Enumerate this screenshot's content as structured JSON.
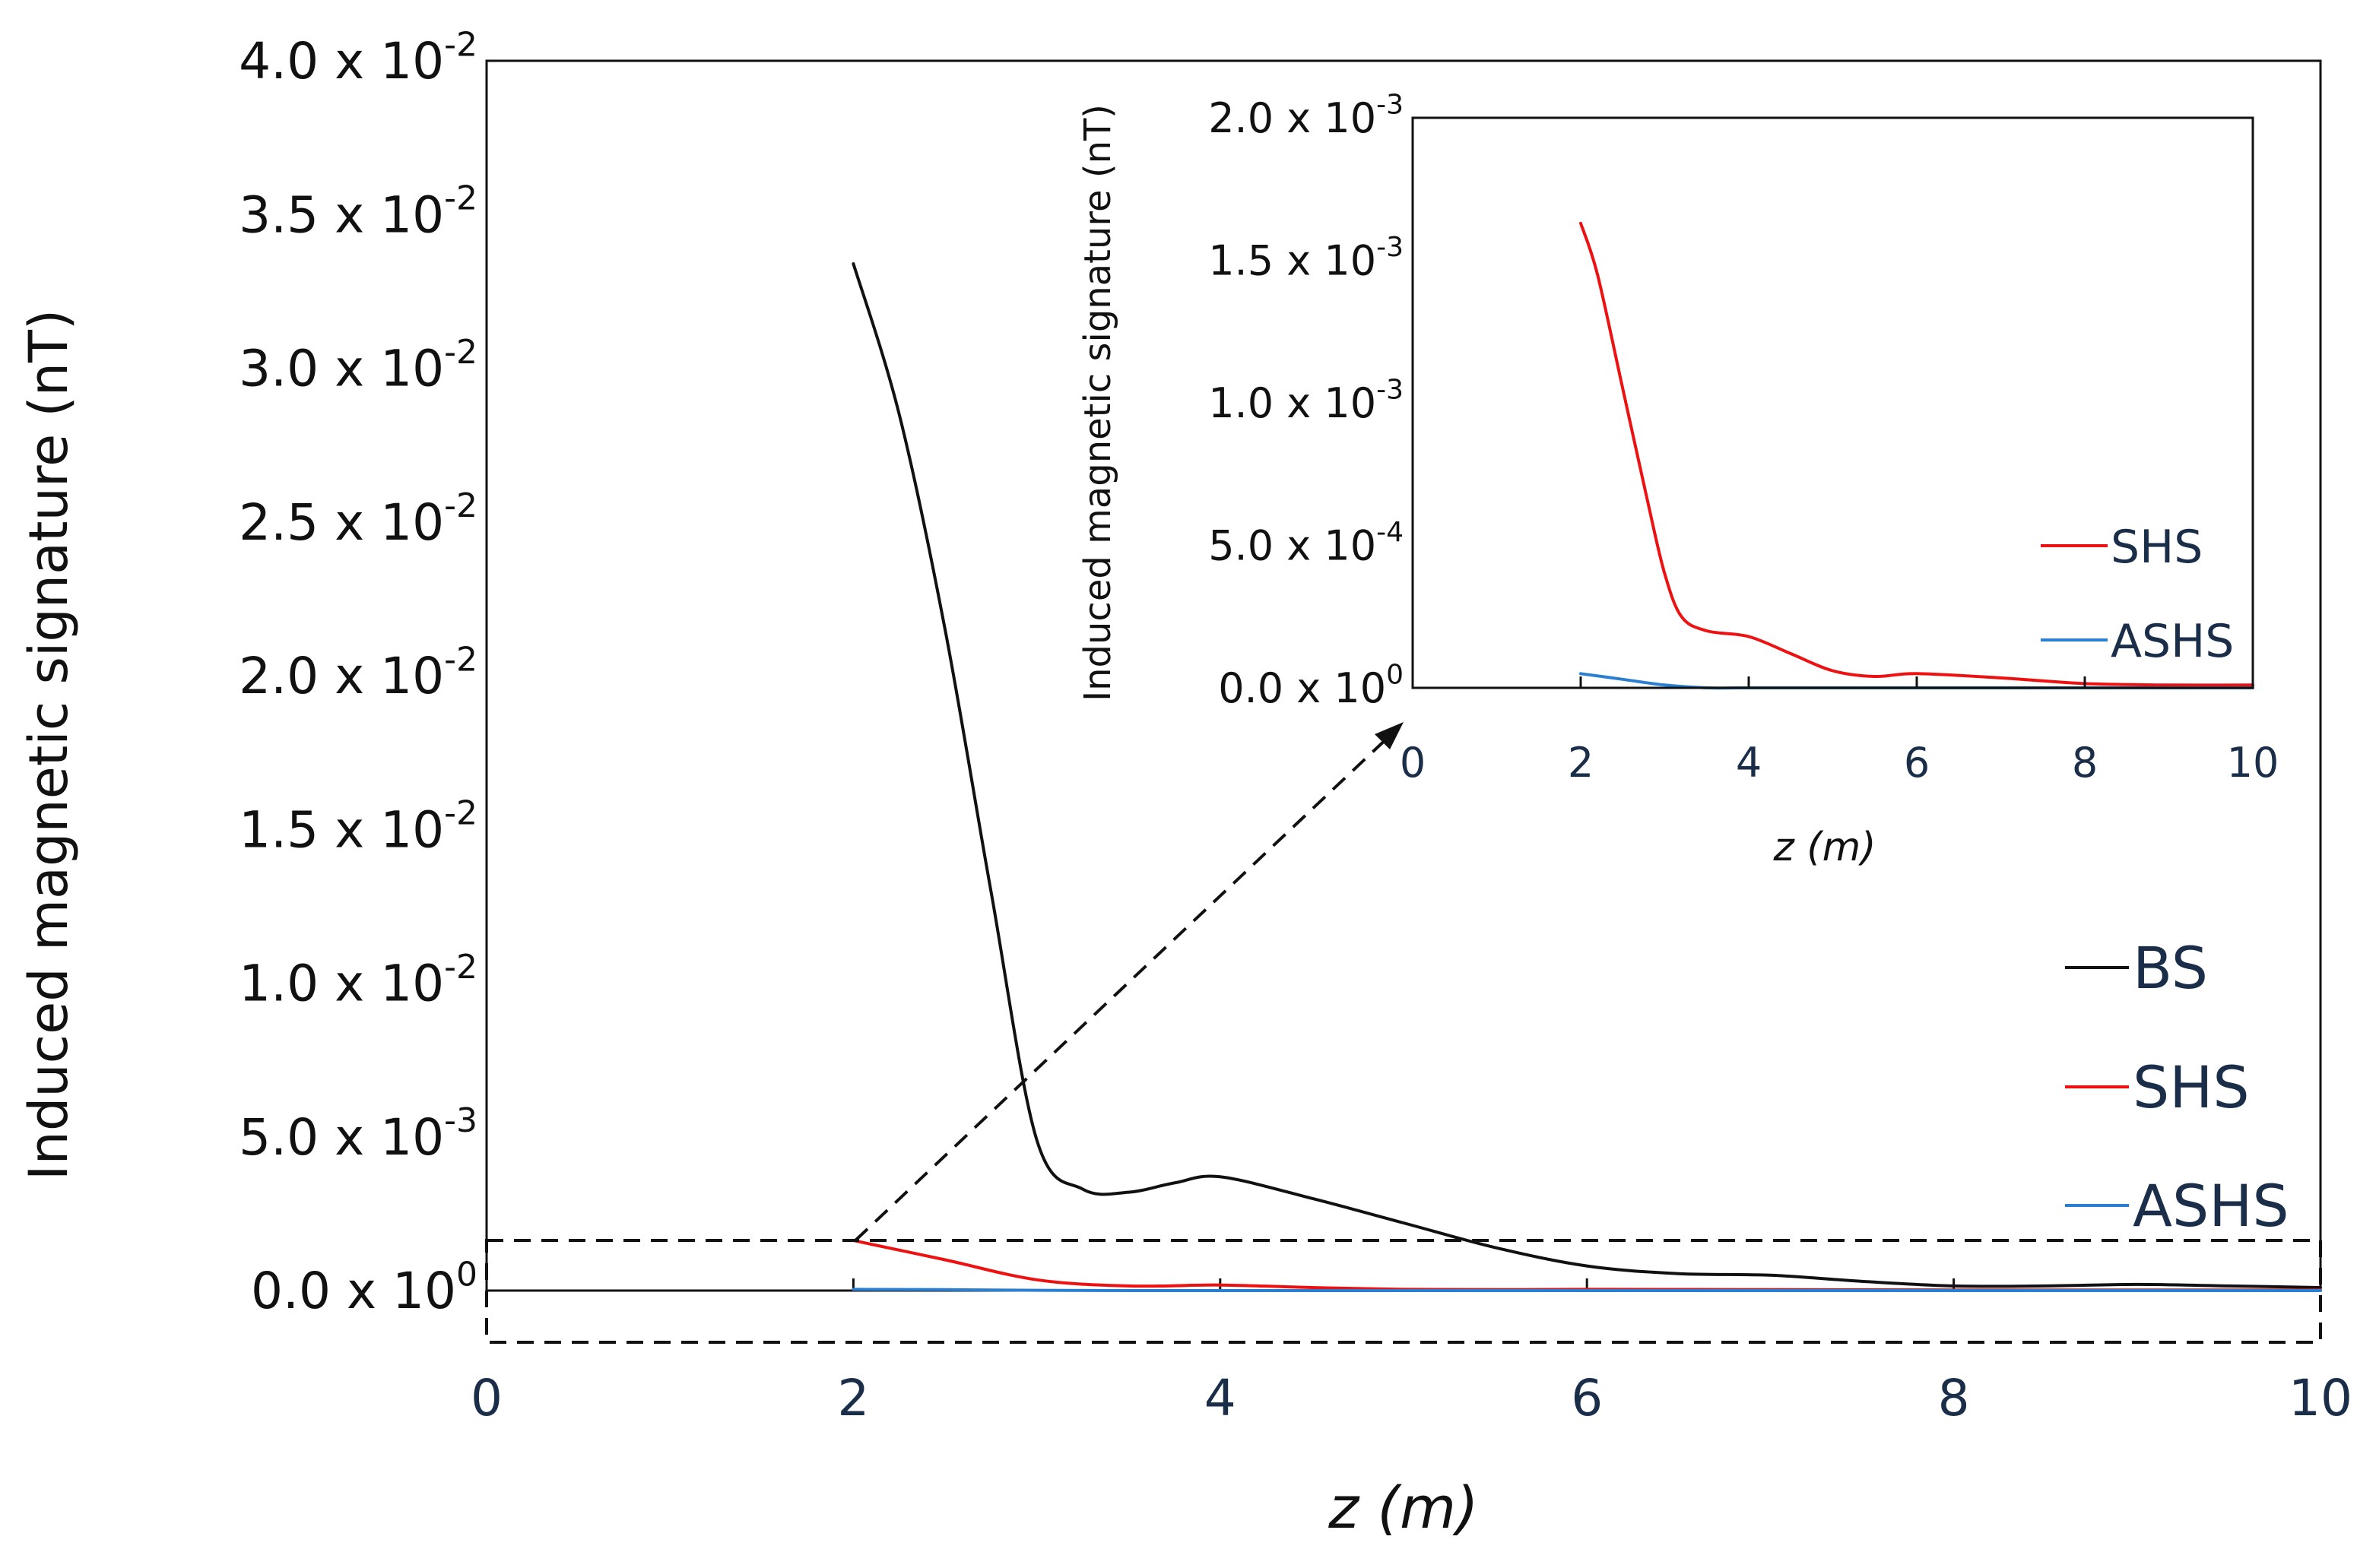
{
  "chart_data": [
    {
      "type": "line",
      "name": "main",
      "xlabel": "z (m)",
      "ylabel": "Induced magnetic signature (nT)",
      "xlim": [
        0,
        10
      ],
      "ylim": [
        0,
        0.04
      ],
      "xticks": [
        0,
        2,
        4,
        6,
        8,
        10
      ],
      "yticks": [
        {
          "value": 0.0,
          "mantissa": "0.0 x 10",
          "exp": "0"
        },
        {
          "value": 0.005,
          "mantissa": "5.0 x 10",
          "exp": "-3"
        },
        {
          "value": 0.01,
          "mantissa": "1.0 x 10",
          "exp": "-2"
        },
        {
          "value": 0.015,
          "mantissa": "1.5 x 10",
          "exp": "-2"
        },
        {
          "value": 0.02,
          "mantissa": "2.0 x 10",
          "exp": "-2"
        },
        {
          "value": 0.025,
          "mantissa": "2.5 x 10",
          "exp": "-2"
        },
        {
          "value": 0.03,
          "mantissa": "3.0 x 10",
          "exp": "-2"
        },
        {
          "value": 0.035,
          "mantissa": "3.5 x 10",
          "exp": "-2"
        },
        {
          "value": 0.04,
          "mantissa": "4.0 x 10",
          "exp": "-2"
        }
      ],
      "series": [
        {
          "name": "BS",
          "color": "#111111",
          "x": [
            2.0,
            2.25,
            2.5,
            2.75,
            3.0,
            3.25,
            3.5,
            3.75,
            4.0,
            4.5,
            5.0,
            5.5,
            6.0,
            6.5,
            7.0,
            7.5,
            8.0,
            8.5,
            9.0,
            9.5,
            10.0
          ],
          "y": [
            0.0334,
            0.0285,
            0.0215,
            0.013,
            0.0049,
            0.0033,
            0.0032,
            0.0035,
            0.0037,
            0.003,
            0.0022,
            0.0014,
            0.0008,
            0.00055,
            0.0005,
            0.0003,
            0.00015,
            0.00015,
            0.0002,
            0.00015,
            0.0001
          ]
        },
        {
          "name": "SHS",
          "color": "#ee1111",
          "x": [
            2.0,
            2.5,
            3.0,
            3.5,
            4.0,
            4.5,
            5.0,
            5.5,
            6.0,
            7.0,
            8.0,
            9.0,
            10.0
          ],
          "y": [
            0.00163,
            0.001,
            0.00035,
            0.00015,
            0.00018,
            0.0001,
            4e-05,
            3e-05,
            4e-05,
            3e-05,
            2e-05,
            2e-05,
            2e-05
          ]
        },
        {
          "name": "ASHS",
          "color": "#2b7fd1",
          "x": [
            2.0,
            2.5,
            3.0,
            3.5,
            4.0,
            6.0,
            8.0,
            10.0
          ],
          "y": [
            4e-05,
            3e-05,
            1e-05,
            0.0,
            0.0,
            0.0,
            0.0,
            0.0
          ]
        }
      ],
      "legend": [
        "BS",
        "SHS",
        "ASHS"
      ],
      "annotation": "dashed zoom box from y ≈ -1.6e-3 to 1.6e-3 with arrow to inset"
    },
    {
      "type": "line",
      "name": "inset",
      "xlabel": "z (m)",
      "ylabel": "Induced magnetic signature (nT)",
      "xlim": [
        0,
        10
      ],
      "ylim": [
        0,
        0.002
      ],
      "xticks": [
        0,
        2,
        4,
        6,
        8,
        10
      ],
      "yticks": [
        {
          "value": 0.0,
          "mantissa": "0.0 x 10",
          "exp": "0"
        },
        {
          "value": 0.0005,
          "mantissa": "5.0 x 10",
          "exp": "-4"
        },
        {
          "value": 0.001,
          "mantissa": "1.0 x 10",
          "exp": "-3"
        },
        {
          "value": 0.0015,
          "mantissa": "1.5 x 10",
          "exp": "-3"
        },
        {
          "value": 0.002,
          "mantissa": "2.0 x 10",
          "exp": "-3"
        }
      ],
      "series": [
        {
          "name": "SHS",
          "color": "#ee1111",
          "x": [
            2.0,
            2.2,
            2.5,
            2.8,
            3.0,
            3.2,
            3.5,
            4.0,
            4.5,
            5.0,
            5.5,
            6.0,
            7.0,
            8.0,
            9.0,
            10.0
          ],
          "y": [
            0.00163,
            0.00145,
            0.00105,
            0.00065,
            0.0004,
            0.00025,
            0.0002,
            0.00018,
            0.00012,
            6e-05,
            4e-05,
            5e-05,
            3.5e-05,
            1.5e-05,
            1e-05,
            1e-05
          ]
        },
        {
          "name": "ASHS",
          "color": "#2b7fd1",
          "x": [
            2.0,
            2.5,
            3.0,
            3.5,
            4.0,
            6.0,
            8.0,
            10.0
          ],
          "y": [
            5e-05,
            3e-05,
            1e-05,
            0.0,
            0.0,
            0.0,
            0.0,
            0.0
          ]
        }
      ],
      "legend": [
        "SHS",
        "ASHS"
      ]
    }
  ]
}
